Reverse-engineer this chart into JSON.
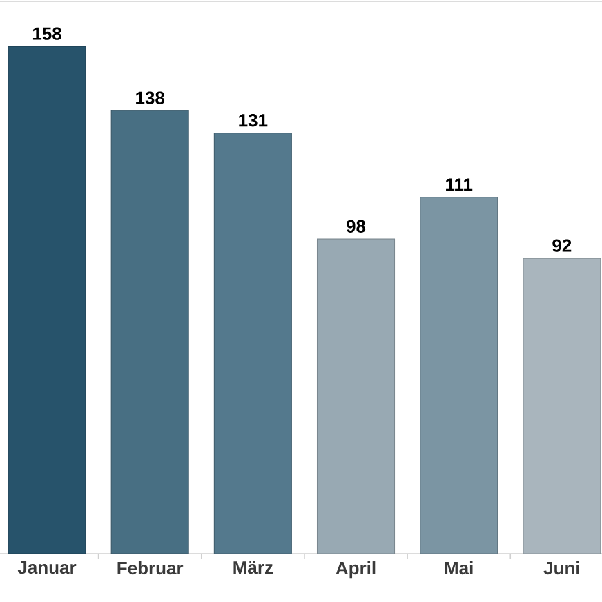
{
  "chart_data": {
    "type": "bar",
    "categories": [
      "Januar",
      "Februar",
      "März",
      "April",
      "Mai",
      "Juni"
    ],
    "values": [
      158,
      138,
      131,
      98,
      111,
      92
    ],
    "colors": [
      "#27536b",
      "#486f83",
      "#54798d",
      "#98a9b3",
      "#7b95a3",
      "#a9b5bd"
    ],
    "ylim": [
      0,
      172
    ],
    "data_labels": true,
    "tick_labels": "x"
  }
}
